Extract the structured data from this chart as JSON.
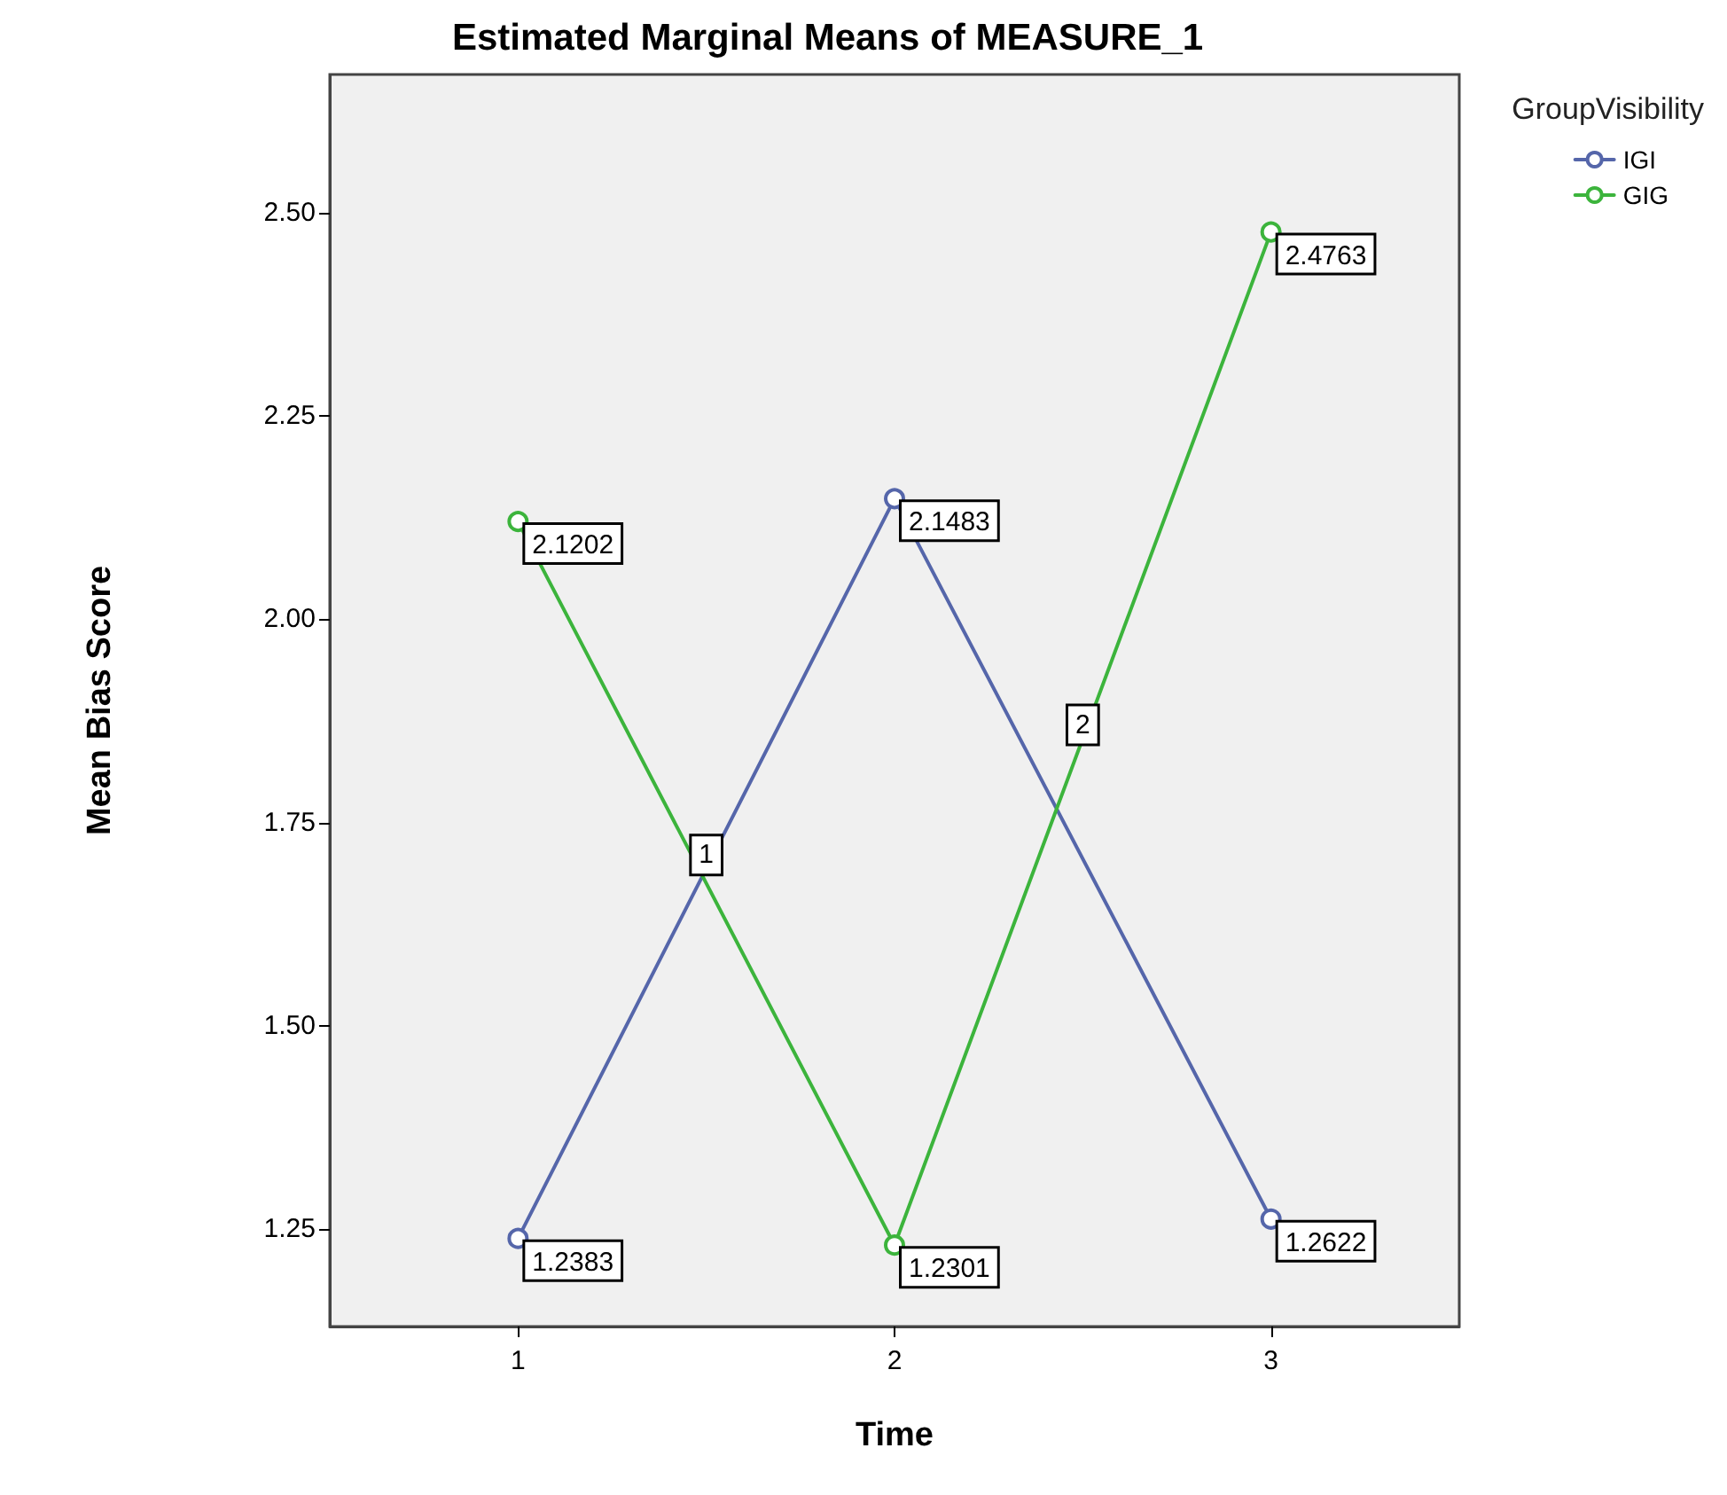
{
  "chart_data": {
    "type": "line",
    "title": "Estimated Marginal Means of MEASURE_1",
    "xlabel": "Time",
    "ylabel": "Mean Bias Score",
    "legend_title": "GroupVisibility",
    "categories": [
      "1",
      "2",
      "3"
    ],
    "series": [
      {
        "name": "IGI",
        "color": "#5566aa",
        "values": [
          1.2383,
          2.1483,
          1.2622
        ]
      },
      {
        "name": "GIG",
        "color": "#3cb43c",
        "values": [
          2.1202,
          1.2301,
          2.4763
        ]
      }
    ],
    "ylim": [
      1.13,
      2.67
    ],
    "yticks": [
      {
        "value": 1.25,
        "label": "1.25"
      },
      {
        "value": 1.5,
        "label": "1.50"
      },
      {
        "value": 1.75,
        "label": "1.75"
      },
      {
        "value": 2,
        "label": "2.00"
      },
      {
        "value": 2.25,
        "label": "2.25"
      },
      {
        "value": 2.5,
        "label": "2.50"
      }
    ],
    "annotations": [
      {
        "text": "1",
        "y": 1.71
      },
      {
        "text": "2",
        "y": 1.87
      }
    ],
    "data_labels": true,
    "grid": false,
    "legend": "top right",
    "marker": "circle",
    "line_style": "solid"
  }
}
